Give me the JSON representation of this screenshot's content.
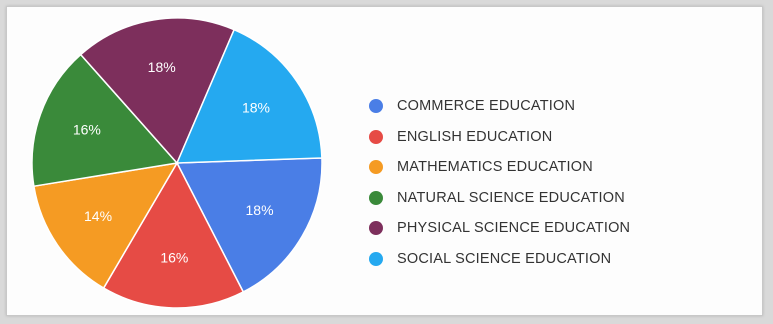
{
  "chart_data": {
    "type": "pie",
    "title": "",
    "slices": [
      {
        "label": "COMMERCE EDUCATION",
        "value": 18,
        "display": "18%",
        "color": "#4a7ee6"
      },
      {
        "label": "ENGLISH EDUCATION",
        "value": 16,
        "display": "16%",
        "color": "#e64b45"
      },
      {
        "label": "MATHEMATICS EDUCATION",
        "value": 14,
        "display": "14%",
        "color": "#f59b23"
      },
      {
        "label": "NATURAL SCIENCE EDUCATION",
        "value": 16,
        "display": "16%",
        "color": "#3a8a3a"
      },
      {
        "label": "PHYSICAL SCIENCE EDUCATION",
        "value": 18,
        "display": "18%",
        "color": "#7d2f5c"
      },
      {
        "label": "SOCIAL SCIENCE EDUCATION",
        "value": 18,
        "display": "18%",
        "color": "#25a9f0"
      }
    ],
    "legend_position": "right"
  }
}
